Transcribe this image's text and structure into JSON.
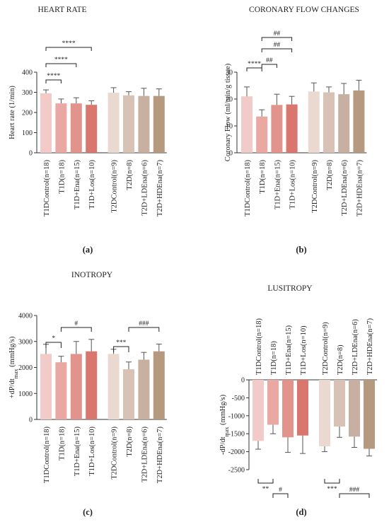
{
  "panel_labels": [
    "(a)",
    "(b)",
    "(c)",
    "(d)"
  ],
  "chart_data": [
    {
      "type": "bar",
      "title": "HEART RATE",
      "xlabel": "",
      "ylabel": "Heart rate (1/min)",
      "ylim": [
        0,
        400
      ],
      "yticks": [
        "0",
        "100",
        "200",
        "300",
        "400"
      ],
      "categories": [
        "T1DControl(n=18)",
        "T1D(n=18)",
        "T1D+Ena(n=15)",
        "T1D+Los(n=10)",
        "T2DControl(n=9)",
        "T2D(n=8)",
        "T2D+LDEna(n=6)",
        "T2D+HDEna(n=7)"
      ],
      "values": [
        295,
        245,
        245,
        238,
        298,
        285,
        282,
        282
      ],
      "errors": [
        17,
        22,
        28,
        20,
        25,
        18,
        38,
        35
      ],
      "colors": [
        "#f2cbc8",
        "#e9a8a2",
        "#e2938c",
        "#d9766e",
        "#e9d9d1",
        "#d7c2b5",
        "#c7b0a2",
        "#b59a7f"
      ],
      "annotations": [
        "****",
        "****",
        "****"
      ]
    },
    {
      "type": "bar",
      "title": "CORONARY FLOW CHANGES",
      "xlabel": "",
      "ylabel": "Coronary Flow (ml/min/g tissue)",
      "ylim": [
        0,
        30
      ],
      "yticks": [
        "0",
        "10",
        "20",
        "30"
      ],
      "categories": [
        "T1DControl(n=18)",
        "T1D(n=18)",
        "T1D+Ena(n=15)",
        "T1D+Los(n=10)",
        "T2DControl(n=9)",
        "T2D(n=8)",
        "T2D+LDEna(n=6)",
        "T2D+HDEna(n=7)"
      ],
      "values": [
        21.0,
        13.5,
        17.8,
        18.0,
        22.8,
        22.5,
        21.8,
        23.2
      ],
      "errors": [
        3.5,
        2.5,
        4.0,
        3.0,
        3.2,
        2.0,
        4.0,
        3.8
      ],
      "colors": [
        "#f2cbc8",
        "#e9a8a2",
        "#e2938c",
        "#d9766e",
        "#e9d9d1",
        "#d7c2b5",
        "#c7b0a2",
        "#b59a7f"
      ],
      "annotations": [
        "****",
        "##",
        "##",
        "##"
      ]
    },
    {
      "type": "bar",
      "title": "INOTROPY",
      "xlabel": "",
      "ylabel": "+dP/dt",
      "ylabel_sub": "max",
      "ylabel_unit": " (mmHg/s)",
      "ylim": [
        0,
        4000
      ],
      "yticks": [
        "0",
        "1000",
        "2000",
        "3000",
        "4000"
      ],
      "categories": [
        "T1DControl(n=18)",
        "T1D(n=18)",
        "T1D+Ena(n=15)",
        "T1D+Los(n=10)",
        "T2DControl(n=9)",
        "T2D(n=8)",
        "T2D+LDEna(n=6)",
        "T2D+HDEna(n=7)"
      ],
      "values": [
        2520,
        2200,
        2520,
        2620,
        2520,
        1930,
        2300,
        2620
      ],
      "errors": [
        370,
        230,
        480,
        460,
        180,
        280,
        280,
        280
      ],
      "colors": [
        "#f2cbc8",
        "#e9a8a2",
        "#e2938c",
        "#d9766e",
        "#e9d9d1",
        "#d7c2b5",
        "#c7b0a2",
        "#b59a7f"
      ],
      "annotations": [
        "*",
        "#",
        "***",
        "###"
      ]
    },
    {
      "type": "bar",
      "title": "LUSITROPY",
      "xlabel": "",
      "ylabel": "-dP/dt",
      "ylabel_sub": "max",
      "ylabel_unit": " (mmHg/s)",
      "ylim": [
        -2500,
        0
      ],
      "yticks": [
        "0",
        "-500",
        "-1000",
        "-1500",
        "-2000",
        "-2500"
      ],
      "categories": [
        "T1DControl(n=18)",
        "T1D(n=18)",
        "T1D+Ena(n=15)",
        "T1D+Los(n=10)",
        "T2DControl(n=9)",
        "T2D(n=8)",
        "T2D+LDEna(n=6)",
        "T2D+HDEna(n=7)"
      ],
      "values": [
        -1700,
        -1250,
        -1600,
        -1550,
        -1850,
        -1300,
        -1580,
        -1920
      ],
      "errors": [
        230,
        250,
        420,
        500,
        150,
        300,
        300,
        200
      ],
      "colors": [
        "#f2cbc8",
        "#e9a8a2",
        "#e2938c",
        "#d9766e",
        "#e9d9d1",
        "#d7c2b5",
        "#c7b0a2",
        "#b59a7f"
      ],
      "annotations": [
        "**",
        "#",
        "***",
        "###"
      ]
    }
  ]
}
